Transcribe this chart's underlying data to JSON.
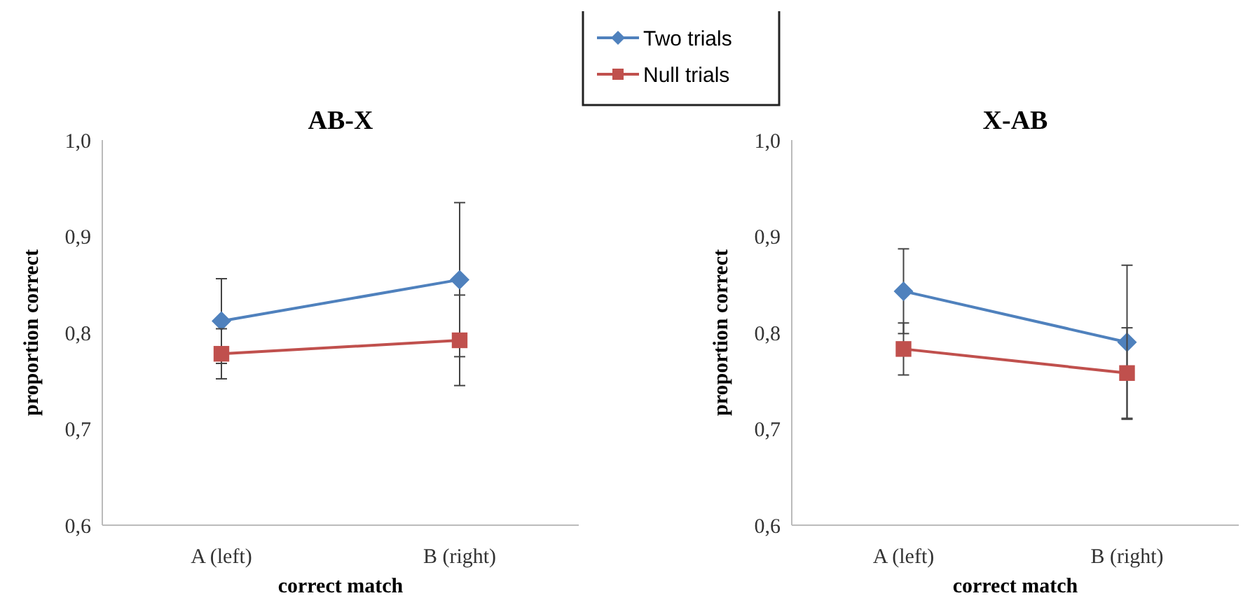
{
  "chart_data": [
    {
      "type": "line",
      "title": "AB-X",
      "xlabel": "correct match",
      "ylabel": "proportion correct",
      "categories": [
        "A (left)",
        "B (right)"
      ],
      "ylim": [
        0.6,
        1.0
      ],
      "yticks": [
        {
          "value": 0.6,
          "label": "0,6"
        },
        {
          "value": 0.7,
          "label": "0,7"
        },
        {
          "value": 0.8,
          "label": "0,8"
        },
        {
          "value": 0.9,
          "label": "0,9"
        },
        {
          "value": 1.0,
          "label": "1,0"
        }
      ],
      "grid": false,
      "legend": "top",
      "series": [
        {
          "name": "Two trials",
          "color": "#4f81bd",
          "marker": "diamond",
          "values": [
            0.812,
            0.855
          ],
          "errors": [
            0.044,
            0.08
          ]
        },
        {
          "name": "Null trials",
          "color": "#c0504d",
          "marker": "square",
          "values": [
            0.778,
            0.792
          ],
          "errors": [
            0.026,
            0.047
          ]
        }
      ]
    },
    {
      "type": "line",
      "title": "X-AB",
      "xlabel": "correct match",
      "ylabel": "proportion correct",
      "categories": [
        "A (left)",
        "B (right)"
      ],
      "ylim": [
        0.6,
        1.0
      ],
      "yticks": [
        {
          "value": 0.6,
          "label": "0,6"
        },
        {
          "value": 0.7,
          "label": "0,7"
        },
        {
          "value": 0.8,
          "label": "0,8"
        },
        {
          "value": 0.9,
          "label": "0,9"
        },
        {
          "value": 1.0,
          "label": "1,0"
        }
      ],
      "grid": false,
      "series": [
        {
          "color": "#4f81bd",
          "marker": "diamond",
          "values": [
            0.843,
            0.79
          ],
          "errors": [
            0.044,
            0.08
          ]
        },
        {
          "color": "#c0504d",
          "marker": "square",
          "values": [
            0.783,
            0.758
          ],
          "errors": [
            0.027,
            0.047
          ]
        }
      ]
    }
  ]
}
